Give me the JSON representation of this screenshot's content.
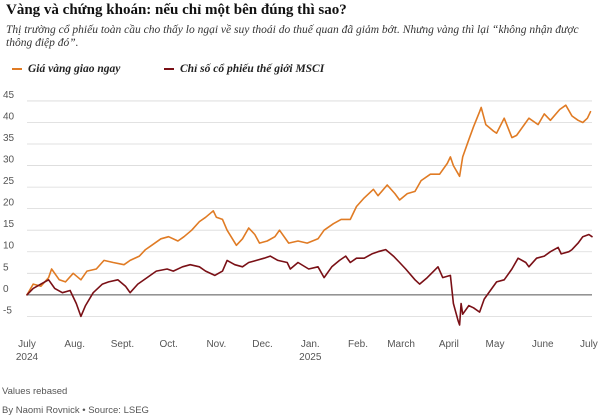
{
  "title": "Vàng và chứng khoán: nếu chỉ một bên đúng thì sao?",
  "subtitle": "Thị trường cổ phiếu toàn cầu cho thấy lo ngại về suy thoái do thuế quan đã giảm bớt. Nhưng vàng thì lại “không nhận được thông điệp đó”.",
  "footnote_rebased": "Values rebased",
  "footnote_source": "By Naomi Rovnick • Source: LSEG",
  "colors": {
    "gold": "#e07b24",
    "msci": "#7a1016",
    "grid": "#d9d9d9",
    "zero": "#555555"
  },
  "chart_data": {
    "type": "line",
    "title": "Vàng và chứng khoán: nếu chỉ một bên đúng thì sao?",
    "xlabel": "",
    "ylabel": "",
    "ylim": [
      -7,
      48
    ],
    "yticks": [
      -5,
      0,
      5,
      10,
      15,
      20,
      25,
      30,
      35,
      40,
      45
    ],
    "xlim": [
      "2024-07-01",
      "2025-07-03"
    ],
    "xticks": [
      {
        "date": "2024-07-01",
        "label": "July",
        "sub": "2024"
      },
      {
        "date": "2024-08-01",
        "label": "Aug."
      },
      {
        "date": "2024-09-01",
        "label": "Sept."
      },
      {
        "date": "2024-10-01",
        "label": "Oct."
      },
      {
        "date": "2024-11-01",
        "label": "Nov."
      },
      {
        "date": "2024-12-01",
        "label": "Dec."
      },
      {
        "date": "2025-01-01",
        "label": "Jan.",
        "sub": "2025"
      },
      {
        "date": "2025-02-01",
        "label": "Feb."
      },
      {
        "date": "2025-03-01",
        "label": "March"
      },
      {
        "date": "2025-04-01",
        "label": "April"
      },
      {
        "date": "2025-05-01",
        "label": "May"
      },
      {
        "date": "2025-06-01",
        "label": "June"
      },
      {
        "date": "2025-07-01",
        "label": "July"
      }
    ],
    "grid": true,
    "legend_position": "top",
    "series": [
      {
        "name": "Giá vàng giao ngay",
        "color": "#e07b24",
        "points": [
          [
            "2024-07-01",
            0
          ],
          [
            "2024-07-05",
            2.5
          ],
          [
            "2024-07-10",
            2.0
          ],
          [
            "2024-07-15",
            4.0
          ],
          [
            "2024-07-17",
            6.0
          ],
          [
            "2024-07-22",
            3.5
          ],
          [
            "2024-07-26",
            3.0
          ],
          [
            "2024-07-31",
            5.0
          ],
          [
            "2024-08-05",
            3.5
          ],
          [
            "2024-08-09",
            5.5
          ],
          [
            "2024-08-15",
            6.0
          ],
          [
            "2024-08-20",
            8.0
          ],
          [
            "2024-08-26",
            7.5
          ],
          [
            "2024-09-02",
            7.0
          ],
          [
            "2024-09-06",
            8.0
          ],
          [
            "2024-09-12",
            9.0
          ],
          [
            "2024-09-16",
            10.5
          ],
          [
            "2024-09-20",
            11.5
          ],
          [
            "2024-09-26",
            13.0
          ],
          [
            "2024-10-01",
            13.5
          ],
          [
            "2024-10-07",
            12.5
          ],
          [
            "2024-10-11",
            13.5
          ],
          [
            "2024-10-16",
            15.0
          ],
          [
            "2024-10-21",
            17.0
          ],
          [
            "2024-10-25",
            18.0
          ],
          [
            "2024-10-30",
            19.5
          ],
          [
            "2024-11-01",
            18.0
          ],
          [
            "2024-11-05",
            17.5
          ],
          [
            "2024-11-08",
            15.0
          ],
          [
            "2024-11-14",
            11.5
          ],
          [
            "2024-11-18",
            13.0
          ],
          [
            "2024-11-22",
            15.5
          ],
          [
            "2024-11-26",
            14.0
          ],
          [
            "2024-11-29",
            12.0
          ],
          [
            "2024-12-04",
            12.5
          ],
          [
            "2024-12-09",
            13.5
          ],
          [
            "2024-12-12",
            15.0
          ],
          [
            "2024-12-18",
            12.0
          ],
          [
            "2024-12-24",
            12.5
          ],
          [
            "2024-12-30",
            12.0
          ],
          [
            "2025-01-06",
            13.0
          ],
          [
            "2025-01-10",
            15.0
          ],
          [
            "2025-01-16",
            16.5
          ],
          [
            "2025-01-21",
            17.5
          ],
          [
            "2025-01-27",
            17.5
          ],
          [
            "2025-01-31",
            20.5
          ],
          [
            "2025-02-05",
            22.5
          ],
          [
            "2025-02-11",
            24.5
          ],
          [
            "2025-02-14",
            23.0
          ],
          [
            "2025-02-20",
            25.5
          ],
          [
            "2025-02-25",
            23.5
          ],
          [
            "2025-02-28",
            22.0
          ],
          [
            "2025-03-05",
            23.5
          ],
          [
            "2025-03-10",
            24.0
          ],
          [
            "2025-03-14",
            26.5
          ],
          [
            "2025-03-20",
            28.0
          ],
          [
            "2025-03-26",
            28.0
          ],
          [
            "2025-03-31",
            30.5
          ],
          [
            "2025-04-02",
            32.0
          ],
          [
            "2025-04-04",
            30.0
          ],
          [
            "2025-04-08",
            27.5
          ],
          [
            "2025-04-10",
            32.0
          ],
          [
            "2025-04-14",
            36.0
          ],
          [
            "2025-04-17",
            39.0
          ],
          [
            "2025-04-21",
            42.5
          ],
          [
            "2025-04-22",
            43.5
          ],
          [
            "2025-04-25",
            39.5
          ],
          [
            "2025-04-30",
            38.0
          ],
          [
            "2025-05-02",
            37.5
          ],
          [
            "2025-05-07",
            41.0
          ],
          [
            "2025-05-12",
            36.5
          ],
          [
            "2025-05-15",
            37.0
          ],
          [
            "2025-05-20",
            39.5
          ],
          [
            "2025-05-23",
            41.0
          ],
          [
            "2025-05-29",
            39.5
          ],
          [
            "2025-06-02",
            42.0
          ],
          [
            "2025-06-06",
            40.5
          ],
          [
            "2025-06-12",
            43.0
          ],
          [
            "2025-06-16",
            44.0
          ],
          [
            "2025-06-20",
            41.5
          ],
          [
            "2025-06-24",
            40.5
          ],
          [
            "2025-06-27",
            40.0
          ],
          [
            "2025-06-30",
            41.0
          ],
          [
            "2025-07-02",
            42.5
          ]
        ]
      },
      {
        "name": "Chỉ số cổ phiếu thế giới MSCI",
        "color": "#7a1016",
        "points": [
          [
            "2024-07-01",
            0
          ],
          [
            "2024-07-05",
            1.5
          ],
          [
            "2024-07-10",
            2.5
          ],
          [
            "2024-07-15",
            3.5
          ],
          [
            "2024-07-19",
            1.5
          ],
          [
            "2024-07-24",
            0.5
          ],
          [
            "2024-07-29",
            1.0
          ],
          [
            "2024-08-02",
            -2.0
          ],
          [
            "2024-08-05",
            -5.0
          ],
          [
            "2024-08-08",
            -2.5
          ],
          [
            "2024-08-13",
            0.5
          ],
          [
            "2024-08-19",
            2.5
          ],
          [
            "2024-08-23",
            3.0
          ],
          [
            "2024-08-29",
            3.5
          ],
          [
            "2024-09-03",
            2.0
          ],
          [
            "2024-09-06",
            0.5
          ],
          [
            "2024-09-11",
            2.5
          ],
          [
            "2024-09-17",
            4.0
          ],
          [
            "2024-09-23",
            5.5
          ],
          [
            "2024-09-30",
            6.0
          ],
          [
            "2024-10-04",
            5.5
          ],
          [
            "2024-10-10",
            6.5
          ],
          [
            "2024-10-15",
            7.0
          ],
          [
            "2024-10-21",
            6.5
          ],
          [
            "2024-10-25",
            5.5
          ],
          [
            "2024-10-31",
            4.5
          ],
          [
            "2024-11-05",
            5.5
          ],
          [
            "2024-11-08",
            8.0
          ],
          [
            "2024-11-13",
            7.0
          ],
          [
            "2024-11-18",
            6.5
          ],
          [
            "2024-11-22",
            7.5
          ],
          [
            "2024-11-27",
            8.0
          ],
          [
            "2024-12-02",
            8.5
          ],
          [
            "2024-12-06",
            9.0
          ],
          [
            "2024-12-11",
            8.0
          ],
          [
            "2024-12-17",
            7.5
          ],
          [
            "2024-12-19",
            6.0
          ],
          [
            "2024-12-24",
            7.5
          ],
          [
            "2024-12-31",
            6.0
          ],
          [
            "2025-01-06",
            6.5
          ],
          [
            "2025-01-10",
            4.0
          ],
          [
            "2025-01-15",
            6.5
          ],
          [
            "2025-01-20",
            8.0
          ],
          [
            "2025-01-24",
            9.0
          ],
          [
            "2025-01-27",
            7.5
          ],
          [
            "2025-01-31",
            8.5
          ],
          [
            "2025-02-05",
            8.5
          ],
          [
            "2025-02-10",
            9.5
          ],
          [
            "2025-02-14",
            10.0
          ],
          [
            "2025-02-19",
            10.5
          ],
          [
            "2025-02-24",
            9.0
          ],
          [
            "2025-02-28",
            7.5
          ],
          [
            "2025-03-04",
            6.0
          ],
          [
            "2025-03-10",
            3.5
          ],
          [
            "2025-03-13",
            2.5
          ],
          [
            "2025-03-18",
            4.0
          ],
          [
            "2025-03-25",
            6.5
          ],
          [
            "2025-03-28",
            4.0
          ],
          [
            "2025-04-02",
            4.5
          ],
          [
            "2025-04-04",
            -2.0
          ],
          [
            "2025-04-07",
            -6.0
          ],
          [
            "2025-04-08",
            -7.0
          ],
          [
            "2025-04-09",
            -2.0
          ],
          [
            "2025-04-10",
            -4.5
          ],
          [
            "2025-04-14",
            -2.5
          ],
          [
            "2025-04-17",
            -3.0
          ],
          [
            "2025-04-21",
            -4.0
          ],
          [
            "2025-04-24",
            -1.0
          ],
          [
            "2025-04-29",
            1.5
          ],
          [
            "2025-05-02",
            3.0
          ],
          [
            "2025-05-07",
            3.5
          ],
          [
            "2025-05-12",
            6.0
          ],
          [
            "2025-05-16",
            8.5
          ],
          [
            "2025-05-21",
            7.5
          ],
          [
            "2025-05-23",
            6.5
          ],
          [
            "2025-05-28",
            8.5
          ],
          [
            "2025-06-02",
            9.0
          ],
          [
            "2025-06-06",
            10.0
          ],
          [
            "2025-06-11",
            11.0
          ],
          [
            "2025-06-13",
            9.5
          ],
          [
            "2025-06-18",
            10.0
          ],
          [
            "2025-06-20",
            10.5
          ],
          [
            "2025-06-24",
            12.0
          ],
          [
            "2025-06-27",
            13.5
          ],
          [
            "2025-07-01",
            14.0
          ],
          [
            "2025-07-03",
            13.5
          ]
        ]
      }
    ]
  }
}
